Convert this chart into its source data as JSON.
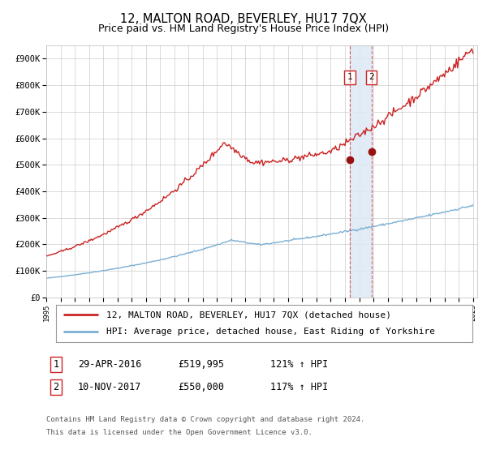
{
  "title": "12, MALTON ROAD, BEVERLEY, HU17 7QX",
  "subtitle": "Price paid vs. HM Land Registry's House Price Index (HPI)",
  "ylim": [
    0,
    950000
  ],
  "yticks": [
    0,
    100000,
    200000,
    300000,
    400000,
    500000,
    600000,
    700000,
    800000,
    900000
  ],
  "ytick_labels": [
    "£0",
    "£100K",
    "£200K",
    "£300K",
    "£400K",
    "£500K",
    "£600K",
    "£700K",
    "£800K",
    "£900K"
  ],
  "hpi_color": "#7bafd4",
  "price_color": "#cc2222",
  "marker_color": "#991111",
  "vline_color": "#cc2222",
  "vband_color": "#dce9f5",
  "point1_date_num": 2016.33,
  "point1_value": 519995,
  "point1_label": "1",
  "point2_date_num": 2017.86,
  "point2_value": 550000,
  "point2_label": "2",
  "legend_line1": "12, MALTON ROAD, BEVERLEY, HU17 7QX (detached house)",
  "legend_line2": "HPI: Average price, detached house, East Riding of Yorkshire",
  "table_row1": [
    "1",
    "29-APR-2016",
    "£519,995",
    "121% ↑ HPI"
  ],
  "table_row2": [
    "2",
    "10-NOV-2017",
    "£550,000",
    "117% ↑ HPI"
  ],
  "footnote1": "Contains HM Land Registry data © Crown copyright and database right 2024.",
  "footnote2": "This data is licensed under the Open Government Licence v3.0.",
  "background_color": "#ffffff",
  "grid_color": "#cccccc",
  "title_fontsize": 10.5,
  "subtitle_fontsize": 9,
  "tick_fontsize": 7.5,
  "legend_fontsize": 8,
  "table_fontsize": 8.5,
  "footnote_fontsize": 6.5
}
